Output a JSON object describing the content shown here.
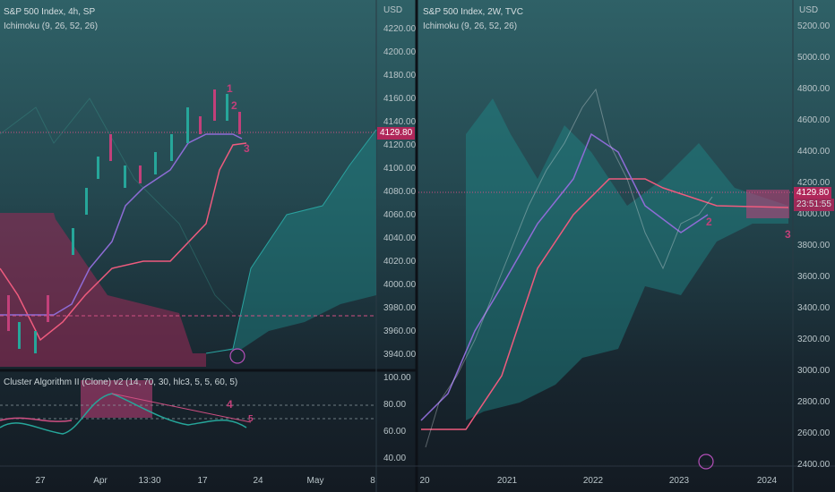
{
  "left_pane": {
    "title": "S&P 500 Index, 4h, SP",
    "indicator": "Ichimoku (9, 26, 52, 26)",
    "currency": "USD",
    "price_labels": [
      "4220.00",
      "4200.00",
      "4180.00",
      "4160.00",
      "4140.00",
      "4120.00",
      "4100.00",
      "4080.00",
      "4060.00",
      "4040.00",
      "4020.00",
      "4000.00",
      "3980.00",
      "3960.00",
      "3940.00"
    ],
    "last_price": "4129.80",
    "annotations": [
      "1",
      "2",
      "3"
    ],
    "oscillator": {
      "title": "Cluster Algorithm II (Clone) v2 (14, 70, 30, hlc3, 5, 5, 60, 5)",
      "labels": [
        "100.00",
        "80.00",
        "60.00",
        "40.00"
      ],
      "annotations": [
        "4",
        "5"
      ]
    },
    "time_labels": [
      "27",
      "Apr",
      "13:30",
      "17",
      "24",
      "May",
      "8"
    ]
  },
  "right_pane": {
    "title": "S&P 500 Index, 2W, TVC",
    "indicator": "Ichimoku (9, 26, 52, 26)",
    "currency": "USD",
    "price_labels": [
      "5200.00",
      "5000.00",
      "4800.00",
      "4600.00",
      "4400.00",
      "4200.00",
      "4000.00",
      "3800.00",
      "3600.00",
      "3400.00",
      "3200.00",
      "3000.00",
      "2800.00",
      "2600.00",
      "2400.00"
    ],
    "last_price": "4129.80",
    "countdown": "23:51:55",
    "annotations": [
      "2",
      "3"
    ],
    "time_labels": [
      "20",
      "2021",
      "2022",
      "2023",
      "2024"
    ]
  }
}
